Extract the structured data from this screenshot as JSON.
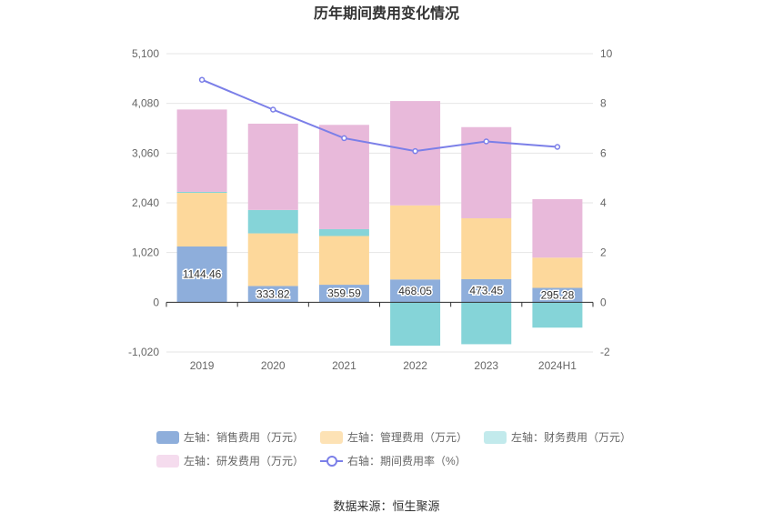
{
  "chart_data": {
    "type": "bar",
    "title": "历年期间费用变化情况",
    "categories": [
      "2019",
      "2020",
      "2021",
      "2022",
      "2023",
      "2024H1"
    ],
    "left_axis": {
      "ylim": [
        -1020,
        5100
      ],
      "ticks": [
        "5,100",
        "4,080",
        "3,060",
        "2,040",
        "1,020",
        "0",
        "-1,020"
      ],
      "tick_values": [
        5100,
        4080,
        3060,
        2040,
        1020,
        0,
        -1020
      ]
    },
    "right_axis": {
      "ylim": [
        -2,
        10
      ],
      "ticks": [
        "10",
        "8",
        "6",
        "4",
        "2",
        "0",
        "-2"
      ],
      "tick_values": [
        10,
        8,
        6,
        4,
        2,
        0,
        -2
      ]
    },
    "series": [
      {
        "name": "左轴：销售费用（万元）",
        "axis": "left",
        "stack": "cost",
        "color": "#8eaedb",
        "legend_color": "#8eaedb",
        "values": [
          1144.46,
          333.82,
          359.59,
          468.05,
          473.45,
          295.28
        ],
        "labels": [
          "1144.46",
          "333.82",
          "359.59",
          "468.05",
          "473.45",
          "295.28"
        ]
      },
      {
        "name": "左轴：管理费用（万元）",
        "axis": "left",
        "stack": "cost",
        "color": "#fdd89b",
        "legend_color": "#fde2b5",
        "values": [
          1100,
          1080,
          1000,
          1520,
          1250,
          620
        ]
      },
      {
        "name": "左轴：财务费用（万元）",
        "axis": "left",
        "stack": "cost",
        "color": "#85d4d8",
        "legend_color": "#c2eaec",
        "values": [
          20,
          480,
          140,
          -890,
          -860,
          -520
        ]
      },
      {
        "name": "左轴：研发费用（万元）",
        "axis": "left",
        "stack": "cost",
        "color": "#e8b9da",
        "legend_color": "#f5dcee",
        "values": [
          1690,
          1770,
          2140,
          2140,
          1870,
          1200
        ]
      },
      {
        "name": "右轴：期间费用率（%）",
        "axis": "right",
        "type": "line",
        "color": "#7b7fe8",
        "legend_color": "#7b7fe8",
        "values": [
          8.95,
          7.75,
          6.6,
          6.08,
          6.47,
          6.25
        ]
      }
    ],
    "legend_position": "bottom",
    "grid": true
  },
  "source": "数据来源：恒生聚源"
}
